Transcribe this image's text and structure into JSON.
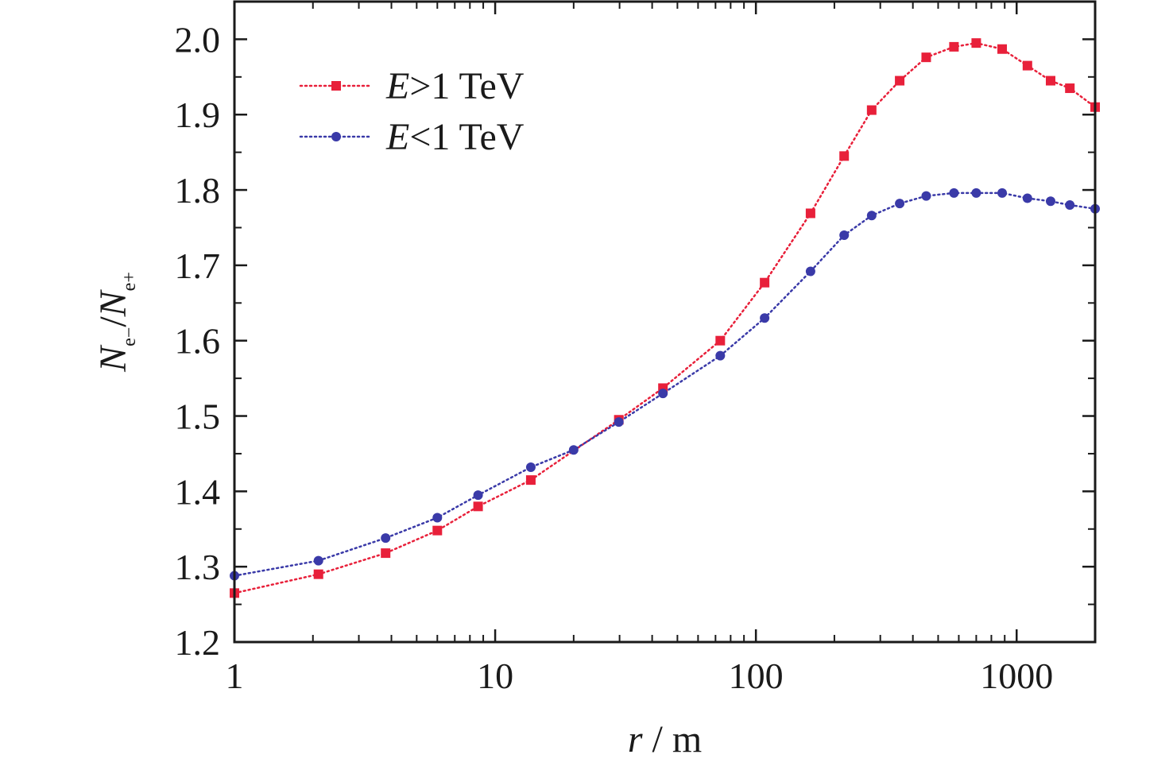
{
  "chart_data": {
    "type": "scatter",
    "xscale": "log",
    "xlim": [
      1,
      2000
    ],
    "ylim": [
      1.2,
      2.05
    ],
    "grid": false,
    "legend_position": "top-left",
    "xlabel": {
      "var": "r",
      "unit": "m"
    },
    "ylabel": {
      "numerator_var": "N",
      "numerator_sub": "e−",
      "denominator_var": "N",
      "denominator_sub": "e+"
    },
    "x_ticks": [
      1,
      10,
      100,
      1000
    ],
    "x_tick_labels": [
      "1",
      "10",
      "100",
      "1000"
    ],
    "y_ticks": [
      1.2,
      1.3,
      1.4,
      1.5,
      1.6,
      1.7,
      1.8,
      1.9,
      2.0
    ],
    "y_tick_labels": [
      "1.2",
      "1.3",
      "1.4",
      "1.5",
      "1.6",
      "1.7",
      "1.8",
      "1.9",
      "2.0"
    ],
    "series": [
      {
        "legend_var": "E",
        "legend_rest": ">1 TeV",
        "marker": "square",
        "color": "#e8203a",
        "x": [
          1.0,
          2.1,
          3.8,
          6.0,
          8.6,
          13.7,
          29.8,
          44.0,
          73.0,
          108.0,
          162.0,
          218.0,
          278.0,
          356.0,
          450.0,
          575.0,
          700.0,
          880.0,
          1100.0,
          1350.0,
          1600.0,
          2000.0
        ],
        "y": [
          1.265,
          1.29,
          1.318,
          1.348,
          1.38,
          1.415,
          1.495,
          1.537,
          1.6,
          1.677,
          1.769,
          1.845,
          1.906,
          1.945,
          1.976,
          1.99,
          1.995,
          1.987,
          1.965,
          1.945,
          1.935,
          1.91
        ]
      },
      {
        "legend_var": "E",
        "legend_rest": "<1 TeV",
        "marker": "circle",
        "color": "#3a3aa8",
        "x": [
          1.0,
          2.1,
          3.8,
          6.0,
          8.6,
          13.7,
          20.0,
          29.8,
          44.0,
          73.0,
          108.0,
          162.0,
          218.0,
          278.0,
          356.0,
          450.0,
          575.0,
          700.0,
          880.0,
          1100.0,
          1350.0,
          1600.0,
          2000.0
        ],
        "y": [
          1.288,
          1.308,
          1.338,
          1.365,
          1.395,
          1.432,
          1.455,
          1.492,
          1.53,
          1.58,
          1.63,
          1.692,
          1.74,
          1.766,
          1.782,
          1.792,
          1.796,
          1.796,
          1.796,
          1.789,
          1.785,
          1.78,
          1.775
        ]
      }
    ]
  }
}
